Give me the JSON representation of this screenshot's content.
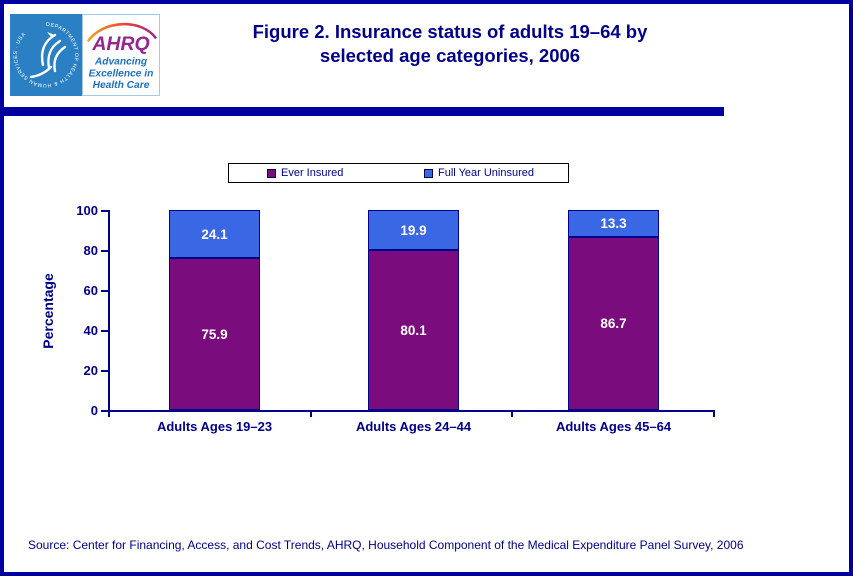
{
  "header": {
    "logo": {
      "hhs_ring_text": "DEPARTMENT OF HEALTH & HUMAN SERVICES · USA",
      "acronym": "AHRQ",
      "tagline_lines": [
        "Advancing",
        "Excellence in",
        "Health Care"
      ]
    },
    "title_line1": "Figure 2. Insurance status of adults 19–64 by",
    "title_line2": "selected age categories, 2006"
  },
  "chart_data": {
    "type": "bar",
    "stacked": true,
    "categories": [
      "Adults Ages 19–23",
      "Adults Ages 24–44",
      "Adults Ages 45–64"
    ],
    "series": [
      {
        "name": "Ever Insured",
        "color": "#7B0C7D",
        "values": [
          75.9,
          80.1,
          86.7
        ]
      },
      {
        "name": "Full Year Uninsured",
        "color": "#3A68E4",
        "values": [
          24.1,
          19.9,
          13.3
        ]
      }
    ],
    "value_labels": {
      "Ever Insured": [
        "75.9",
        "80.1",
        "86.7"
      ],
      "Full Year Uninsured": [
        "24.1",
        "19.9",
        "13.3"
      ]
    },
    "ylabel": "Percentage",
    "yticks": [
      0,
      20,
      40,
      60,
      80,
      100
    ],
    "ylim": [
      0,
      100
    ],
    "grid": false,
    "legend_position": "top"
  },
  "footer": {
    "source": "Source: Center for Financing, Access, and Cost Trends, AHRQ, Household Component of the Medical Expenditure Panel Survey, 2006"
  },
  "colors": {
    "navy_text": "#00008B",
    "page_border": "#0000A0",
    "bar_purple": "#7B0C7D",
    "bar_blue": "#3A68E4",
    "hhs_blue": "#2B80C3",
    "ahrq_purple": "#93278F",
    "tagline_blue": "#1D6FC0"
  }
}
